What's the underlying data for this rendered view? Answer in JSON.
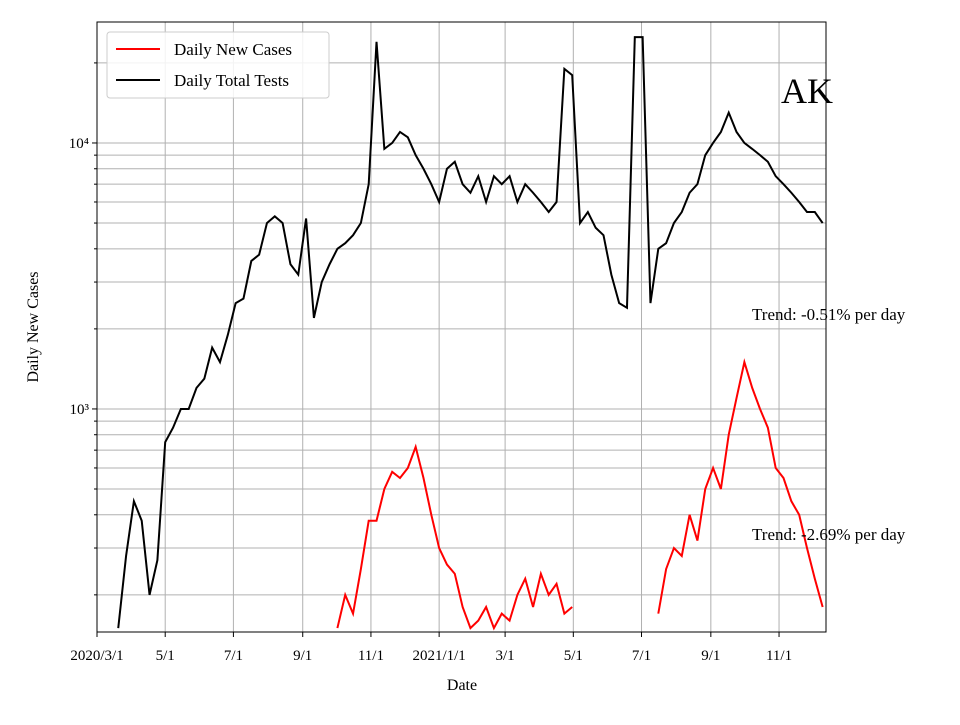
{
  "chart_data": {
    "type": "line",
    "title": "AK",
    "x_label": "Date",
    "y_label": "Daily New Cases",
    "annotations": [
      "Trend: -0.51% per day",
      "Trend: -2.69% per day"
    ],
    "log_y": true,
    "grid": true,
    "legend": "upper left",
    "xlim": [
      "2020-03-01",
      "2021-12-13"
    ],
    "xticks": [
      {
        "value": "2020-03-01",
        "label": "2020/3/1"
      },
      {
        "value": "2020-05-01",
        "label": "5/1"
      },
      {
        "value": "2020-07-01",
        "label": "7/1"
      },
      {
        "value": "2020-09-01",
        "label": "9/1"
      },
      {
        "value": "2020-11-01",
        "label": "11/1"
      },
      {
        "value": "2021-01-01",
        "label": "2021/1/1"
      },
      {
        "value": "2021-03-01",
        "label": "3/1"
      },
      {
        "value": "2021-05-01",
        "label": "5/1"
      },
      {
        "value": "2021-07-01",
        "label": "7/1"
      },
      {
        "value": "2021-09-01",
        "label": "9/1"
      },
      {
        "value": "2021-11-01",
        "label": "11/1"
      }
    ],
    "ylim": [
      145,
      28500
    ],
    "yticks": [
      {
        "value": 1000,
        "label": "10³"
      },
      {
        "value": 10000,
        "label": "10⁴"
      }
    ],
    "yminorticks": [
      200,
      300,
      400,
      500,
      600,
      700,
      800,
      900,
      2000,
      3000,
      4000,
      5000,
      6000,
      7000,
      8000,
      9000,
      20000
    ],
    "x": [
      "2020-03-20",
      "2020-03-27",
      "2020-04-03",
      "2020-04-10",
      "2020-04-17",
      "2020-04-24",
      "2020-05-01",
      "2020-05-08",
      "2020-05-15",
      "2020-05-22",
      "2020-05-29",
      "2020-06-05",
      "2020-06-12",
      "2020-06-19",
      "2020-06-26",
      "2020-07-03",
      "2020-07-10",
      "2020-07-17",
      "2020-07-24",
      "2020-07-31",
      "2020-08-07",
      "2020-08-14",
      "2020-08-21",
      "2020-08-28",
      "2020-09-04",
      "2020-09-11",
      "2020-09-18",
      "2020-09-25",
      "2020-10-02",
      "2020-10-09",
      "2020-10-16",
      "2020-10-23",
      "2020-10-30",
      "2020-11-06",
      "2020-11-13",
      "2020-11-20",
      "2020-11-27",
      "2020-12-04",
      "2020-12-11",
      "2020-12-18",
      "2020-12-25",
      "2021-01-01",
      "2021-01-08",
      "2021-01-15",
      "2021-01-22",
      "2021-01-29",
      "2021-02-05",
      "2021-02-12",
      "2021-02-19",
      "2021-02-26",
      "2021-03-05",
      "2021-03-12",
      "2021-03-19",
      "2021-03-26",
      "2021-04-02",
      "2021-04-09",
      "2021-04-16",
      "2021-04-23",
      "2021-04-30",
      "2021-05-07",
      "2021-05-14",
      "2021-05-21",
      "2021-05-28",
      "2021-06-04",
      "2021-06-11",
      "2021-06-18",
      "2021-06-25",
      "2021-07-02",
      "2021-07-09",
      "2021-07-16",
      "2021-07-23",
      "2021-07-30",
      "2021-08-06",
      "2021-08-13",
      "2021-08-20",
      "2021-08-27",
      "2021-09-03",
      "2021-09-10",
      "2021-09-17",
      "2021-09-24",
      "2021-10-01",
      "2021-10-08",
      "2021-10-15",
      "2021-10-22",
      "2021-10-29",
      "2021-11-05",
      "2021-11-12",
      "2021-11-19",
      "2021-11-26",
      "2021-12-03",
      "2021-12-10"
    ],
    "series": [
      {
        "name": "Daily New Cases",
        "color": "#ff0000",
        "values": [
          null,
          null,
          null,
          null,
          null,
          null,
          null,
          null,
          null,
          null,
          null,
          null,
          null,
          null,
          null,
          null,
          null,
          null,
          null,
          null,
          null,
          null,
          null,
          null,
          null,
          null,
          null,
          null,
          150,
          200,
          170,
          250,
          380,
          380,
          500,
          580,
          550,
          600,
          720,
          550,
          400,
          300,
          260,
          240,
          180,
          150,
          160,
          180,
          150,
          170,
          160,
          200,
          230,
          180,
          240,
          200,
          220,
          170,
          180,
          null,
          null,
          null,
          null,
          null,
          null,
          null,
          null,
          null,
          null,
          170,
          250,
          300,
          280,
          400,
          320,
          500,
          600,
          500,
          800,
          1100,
          1500,
          1200,
          1000,
          850,
          600,
          550,
          450,
          400,
          300,
          230,
          180
        ]
      },
      {
        "name": "Daily Total Tests",
        "color": "#000000",
        "values": [
          150,
          280,
          450,
          380,
          200,
          270,
          750,
          850,
          1000,
          1000,
          1200,
          1300,
          1700,
          1500,
          1900,
          2500,
          2600,
          3600,
          3800,
          5000,
          5300,
          5000,
          3500,
          3200,
          5200,
          2200,
          3000,
          3500,
          4000,
          4200,
          4500,
          5000,
          7000,
          24000,
          9500,
          10000,
          11000,
          10500,
          9000,
          8000,
          7000,
          6000,
          8000,
          8500,
          7000,
          6500,
          7500,
          6000,
          7500,
          7000,
          7500,
          6000,
          7000,
          6500,
          6000,
          5500,
          6000,
          19000,
          18000,
          5000,
          5500,
          4800,
          4500,
          3200,
          2500,
          2400,
          25000,
          25000,
          2500,
          4000,
          4200,
          5000,
          5500,
          6500,
          7000,
          9000,
          10000,
          11000,
          13000,
          11000,
          10000,
          9500,
          9000,
          8500,
          7500,
          7000,
          6500,
          6000,
          5500,
          5500,
          5000
        ]
      }
    ]
  }
}
